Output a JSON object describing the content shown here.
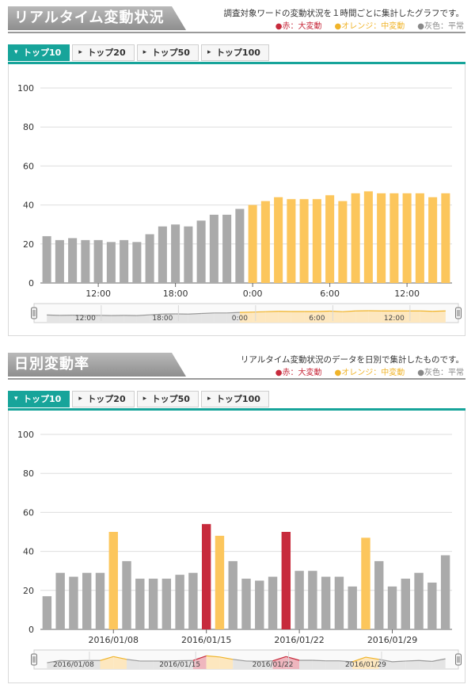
{
  "colors": {
    "red": "#c72a3c",
    "orange": "#fcc65c",
    "gray": "#aaaaaa",
    "accent": "#17a49a"
  },
  "realtime": {
    "title": "リアルタイム変動状況",
    "description": "調査対象ワードの変動状況を１時間ごとに集計したグラフです。",
    "legend": [
      "●赤：大変動",
      "●オレンジ：中変動",
      "●灰色：平常"
    ],
    "tabs": [
      "トップ10",
      "トップ20",
      "トップ50",
      "トップ100"
    ],
    "active_tab": 0
  },
  "daily": {
    "title": "日別変動率",
    "description": "リアルタイム変動状況のデータを日別で集計したものです。",
    "legend": [
      "●赤：大変動",
      "●オレンジ：中変動",
      "●灰色：平常"
    ],
    "tabs": [
      "トップ10",
      "トップ20",
      "トップ50",
      "トップ100"
    ],
    "active_tab": 0
  },
  "chart_data": [
    {
      "type": "bar",
      "y_ticks": [
        0,
        20,
        40,
        60,
        80,
        100
      ],
      "ylim": [
        0,
        100
      ],
      "x_tick_labels": [
        {
          "index": 4,
          "label": "12:00"
        },
        {
          "index": 10,
          "label": "18:00"
        },
        {
          "index": 16,
          "label": "0:00"
        },
        {
          "index": 22,
          "label": "6:00"
        },
        {
          "index": 28,
          "label": "12:00"
        }
      ],
      "navigator_labels": [
        {
          "index": 3,
          "label": "12:00"
        },
        {
          "index": 9,
          "label": "18:00"
        },
        {
          "index": 15,
          "label": "0:00"
        },
        {
          "index": 21,
          "label": "6:00"
        },
        {
          "index": 27,
          "label": "12:00"
        }
      ],
      "values": [
        24,
        22,
        23,
        22,
        22,
        21,
        22,
        21,
        25,
        29,
        30,
        29,
        32,
        35,
        35,
        38,
        40,
        42,
        44,
        43,
        43,
        43,
        45,
        42,
        46,
        47,
        46,
        46,
        46,
        46,
        44,
        46
      ],
      "levels": [
        "g",
        "g",
        "g",
        "g",
        "g",
        "g",
        "g",
        "g",
        "g",
        "g",
        "g",
        "g",
        "g",
        "g",
        "g",
        "g",
        "o",
        "o",
        "o",
        "o",
        "o",
        "o",
        "o",
        "o",
        "o",
        "o",
        "o",
        "o",
        "o",
        "o",
        "o",
        "o"
      ]
    },
    {
      "type": "bar",
      "y_ticks": [
        0,
        20,
        40,
        60,
        80,
        100
      ],
      "ylim": [
        0,
        100
      ],
      "x_tick_labels": [
        {
          "index": 5,
          "label": "2016/01/08"
        },
        {
          "index": 12,
          "label": "2016/01/15"
        },
        {
          "index": 19,
          "label": "2016/01/22"
        },
        {
          "index": 26,
          "label": "2016/01/29"
        }
      ],
      "navigator_labels": [
        {
          "index": 2,
          "label": "2016/01/08"
        },
        {
          "index": 10,
          "label": "2016/01/15"
        },
        {
          "index": 17,
          "label": "2016/01/22"
        },
        {
          "index": 24,
          "label": "2016/01/29"
        }
      ],
      "values": [
        17,
        29,
        27,
        29,
        29,
        50,
        35,
        26,
        26,
        26,
        28,
        29,
        54,
        48,
        35,
        26,
        25,
        27,
        50,
        30,
        30,
        27,
        27,
        22,
        47,
        35,
        22,
        26,
        29,
        24,
        38
      ],
      "levels": [
        "g",
        "g",
        "g",
        "g",
        "g",
        "o",
        "g",
        "g",
        "g",
        "g",
        "g",
        "g",
        "r",
        "o",
        "g",
        "g",
        "g",
        "g",
        "r",
        "g",
        "g",
        "g",
        "g",
        "g",
        "o",
        "g",
        "g",
        "g",
        "g",
        "g",
        "g"
      ]
    }
  ]
}
